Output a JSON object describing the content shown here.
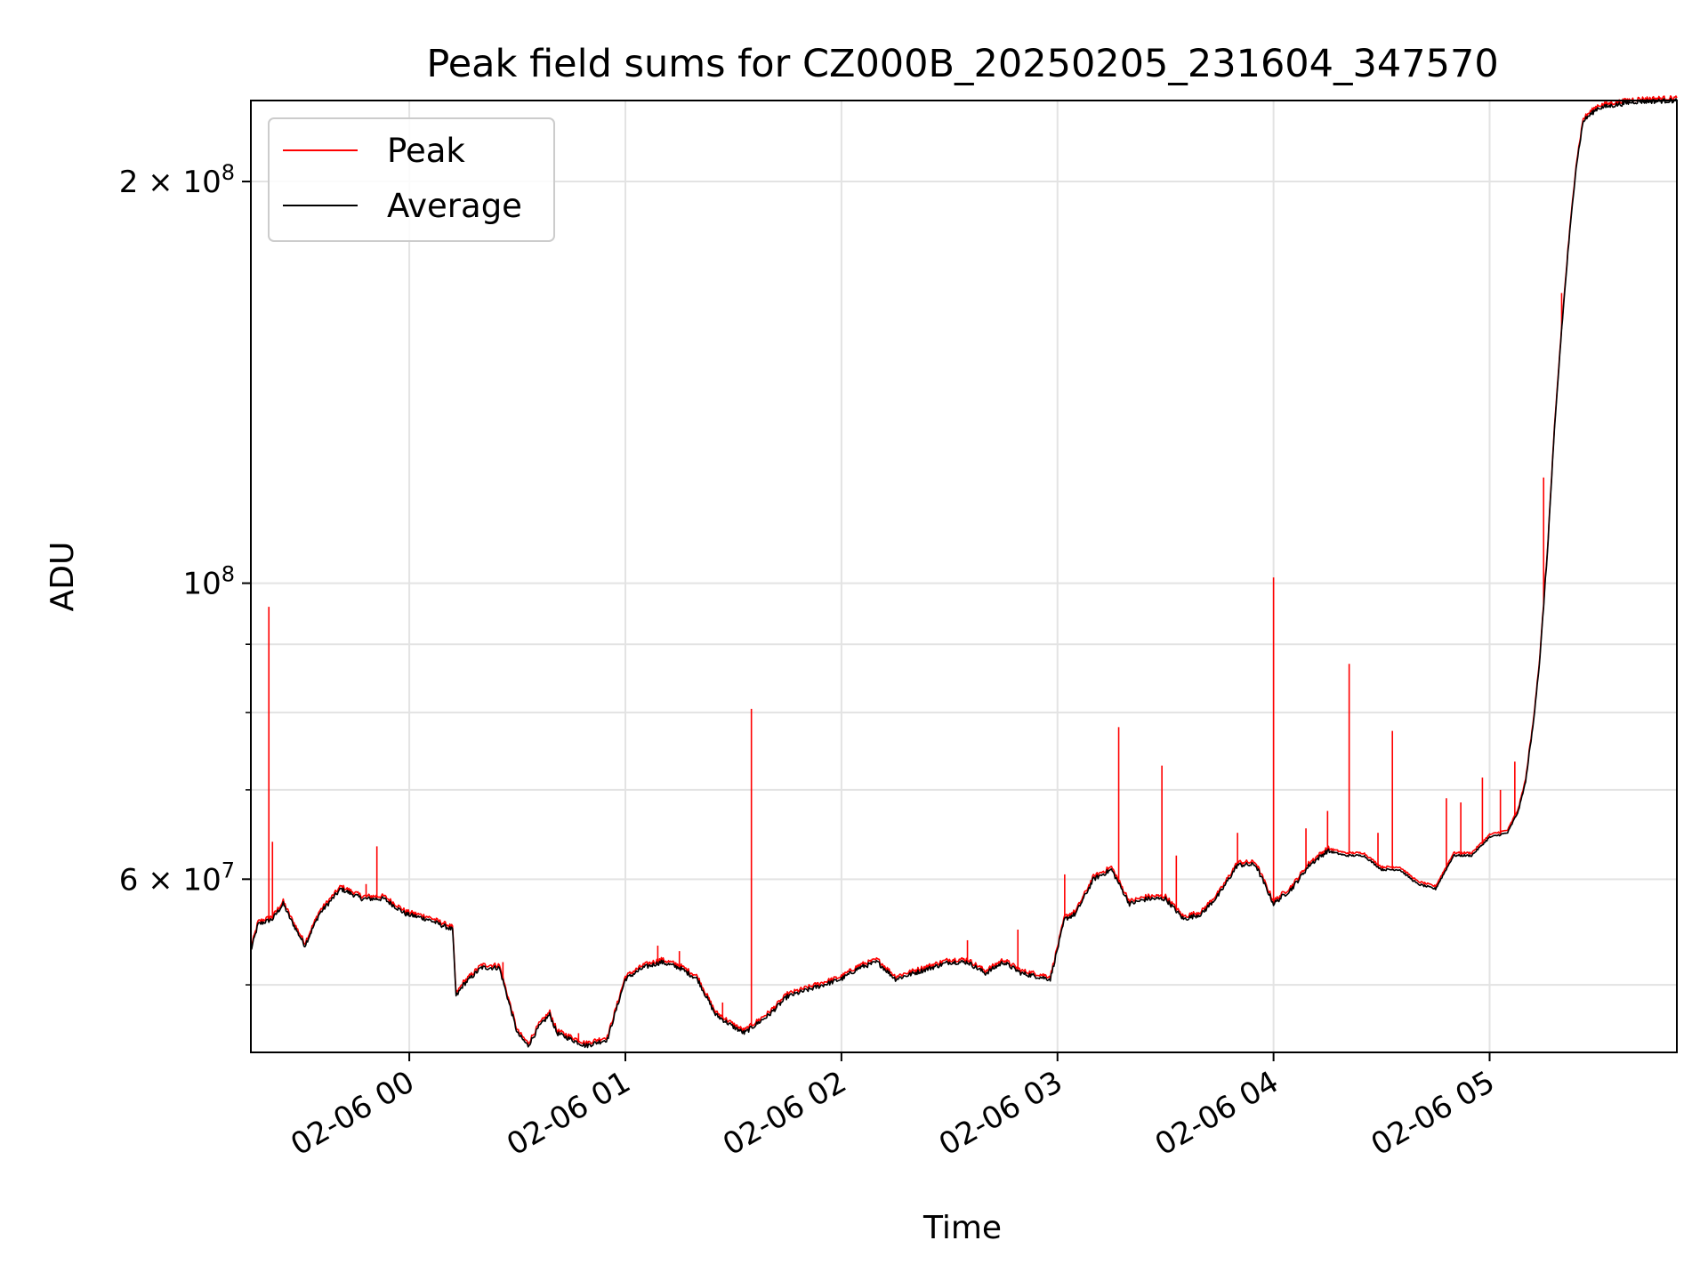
{
  "chart_data": {
    "type": "line",
    "title": "Peak field sums for CZ000B_20250205_231604_347570",
    "xlabel": "Time",
    "ylabel": "ADU",
    "y_scale": "log",
    "ylim": [
      44500000,
      230000000
    ],
    "xlim": [
      "02-05 23:16",
      "02-06 05:52"
    ],
    "grid": true,
    "legend_position": "upper-left",
    "x_ticks": [
      {
        "t": "02-06 00:00",
        "label": "02-06 00"
      },
      {
        "t": "02-06 01:00",
        "label": "02-06 01"
      },
      {
        "t": "02-06 02:00",
        "label": "02-06 02"
      },
      {
        "t": "02-06 03:00",
        "label": "02-06 03"
      },
      {
        "t": "02-06 04:00",
        "label": "02-06 04"
      },
      {
        "t": "02-06 05:00",
        "label": "02-06 05"
      }
    ],
    "y_ticks": [
      {
        "v": 60000000,
        "base": "6 × 10",
        "exp": "7"
      },
      {
        "v": 100000000,
        "base": "10",
        "exp": "8"
      },
      {
        "v": 200000000,
        "base": "2 × 10",
        "exp": "8"
      }
    ],
    "y_minor_ticks": [
      50000000,
      70000000,
      80000000,
      90000000
    ],
    "series": [
      {
        "name": "Average",
        "color": "#000000",
        "points": [
          [
            "02-05 23:16",
            53000000
          ],
          [
            "02-05 23:18",
            55500000
          ],
          [
            "02-05 23:22",
            56000000
          ],
          [
            "02-05 23:25",
            57500000
          ],
          [
            "02-05 23:27",
            56000000
          ],
          [
            "02-05 23:31",
            53500000
          ],
          [
            "02-05 23:35",
            56500000
          ],
          [
            "02-05 23:41",
            59000000
          ],
          [
            "02-05 23:47",
            58000000
          ],
          [
            "02-05 23:53",
            58000000
          ],
          [
            "02-05 23:59",
            56500000
          ],
          [
            "02-06 00:05",
            56000000
          ],
          [
            "02-06 00:12",
            55000000
          ],
          [
            "02-06 00:13",
            49000000
          ],
          [
            "02-06 00:15",
            50000000
          ],
          [
            "02-06 00:20",
            51500000
          ],
          [
            "02-06 00:25",
            51500000
          ],
          [
            "02-06 00:30",
            46000000
          ],
          [
            "02-06 00:33",
            45000000
          ],
          [
            "02-06 00:36",
            46500000
          ],
          [
            "02-06 00:39",
            47500000
          ],
          [
            "02-06 00:41",
            46000000
          ],
          [
            "02-06 00:45",
            45500000
          ],
          [
            "02-06 00:49",
            45000000
          ],
          [
            "02-06 00:55",
            45500000
          ],
          [
            "02-06 01:00",
            50500000
          ],
          [
            "02-06 01:05",
            51500000
          ],
          [
            "02-06 01:10",
            52000000
          ],
          [
            "02-06 01:15",
            51500000
          ],
          [
            "02-06 01:20",
            50500000
          ],
          [
            "02-06 01:25",
            47500000
          ],
          [
            "02-06 01:30",
            46500000
          ],
          [
            "02-06 01:33",
            46000000
          ],
          [
            "02-06 01:40",
            47500000
          ],
          [
            "02-06 01:45",
            49000000
          ],
          [
            "02-06 01:50",
            49500000
          ],
          [
            "02-06 01:55",
            50000000
          ],
          [
            "02-06 02:00",
            50500000
          ],
          [
            "02-06 02:05",
            51500000
          ],
          [
            "02-06 02:10",
            52000000
          ],
          [
            "02-06 02:15",
            50500000
          ],
          [
            "02-06 02:20",
            51000000
          ],
          [
            "02-06 02:25",
            51500000
          ],
          [
            "02-06 02:30",
            52000000
          ],
          [
            "02-06 02:35",
            52000000
          ],
          [
            "02-06 02:40",
            51000000
          ],
          [
            "02-06 02:45",
            52000000
          ],
          [
            "02-06 02:50",
            51000000
          ],
          [
            "02-06 02:58",
            50500000
          ],
          [
            "02-06 03:02",
            56000000
          ],
          [
            "02-06 03:05",
            56500000
          ],
          [
            "02-06 03:10",
            60000000
          ],
          [
            "02-06 03:15",
            61000000
          ],
          [
            "02-06 03:20",
            57500000
          ],
          [
            "02-06 03:25",
            58000000
          ],
          [
            "02-06 03:30",
            58000000
          ],
          [
            "02-06 03:35",
            56000000
          ],
          [
            "02-06 03:40",
            56500000
          ],
          [
            "02-06 03:45",
            58500000
          ],
          [
            "02-06 03:50",
            61500000
          ],
          [
            "02-06 03:55",
            61500000
          ],
          [
            "02-06 04:00",
            57500000
          ],
          [
            "02-06 04:05",
            59000000
          ],
          [
            "02-06 04:10",
            61500000
          ],
          [
            "02-06 04:15",
            63000000
          ],
          [
            "02-06 04:20",
            62500000
          ],
          [
            "02-06 04:25",
            62500000
          ],
          [
            "02-06 04:30",
            61000000
          ],
          [
            "02-06 04:35",
            61000000
          ],
          [
            "02-06 04:40",
            59500000
          ],
          [
            "02-06 04:45",
            59000000
          ],
          [
            "02-06 04:50",
            62500000
          ],
          [
            "02-06 04:55",
            62500000
          ],
          [
            "02-06 05:00",
            64500000
          ],
          [
            "02-06 05:05",
            65000000
          ],
          [
            "02-06 05:08",
            67500000
          ],
          [
            "02-06 05:10",
            71000000
          ],
          [
            "02-06 05:12",
            78000000
          ],
          [
            "02-06 05:14",
            88000000
          ],
          [
            "02-06 05:16",
            105000000
          ],
          [
            "02-06 05:18",
            130000000
          ],
          [
            "02-06 05:20",
            155000000
          ],
          [
            "02-06 05:22",
            180000000
          ],
          [
            "02-06 05:24",
            205000000
          ],
          [
            "02-06 05:26",
            222000000
          ],
          [
            "02-06 05:30",
            227000000
          ],
          [
            "02-06 05:40",
            229500000
          ],
          [
            "02-06 05:52",
            230000000
          ]
        ]
      },
      {
        "name": "Peak",
        "color": "#ff0000",
        "spikes": [
          [
            "02-05 23:21",
            96000000
          ],
          [
            "02-05 23:22",
            64000000
          ],
          [
            "02-05 23:48",
            59500000
          ],
          [
            "02-05 23:51",
            63500000
          ],
          [
            "02-06 00:26",
            52000000
          ],
          [
            "02-06 00:47",
            46000000
          ],
          [
            "02-06 01:09",
            53500000
          ],
          [
            "02-06 01:15",
            53000000
          ],
          [
            "02-06 01:27",
            48500000
          ],
          [
            "02-06 01:35",
            80500000
          ],
          [
            "02-06 02:35",
            54000000
          ],
          [
            "02-06 02:49",
            55000000
          ],
          [
            "02-06 03:02",
            60500000
          ],
          [
            "02-06 03:17",
            78000000
          ],
          [
            "02-06 03:29",
            73000000
          ],
          [
            "02-06 03:33",
            62500000
          ],
          [
            "02-06 03:50",
            65000000
          ],
          [
            "02-06 04:00",
            101000000
          ],
          [
            "02-06 04:09",
            65500000
          ],
          [
            "02-06 04:15",
            67500000
          ],
          [
            "02-06 04:21",
            87000000
          ],
          [
            "02-06 04:29",
            65000000
          ],
          [
            "02-06 04:33",
            77500000
          ],
          [
            "02-06 04:48",
            69000000
          ],
          [
            "02-06 04:52",
            68500000
          ],
          [
            "02-06 04:58",
            71500000
          ],
          [
            "02-06 05:03",
            70000000
          ],
          [
            "02-06 05:07",
            73500000
          ],
          [
            "02-06 05:15",
            120000000
          ],
          [
            "02-06 05:20",
            165000000
          ]
        ]
      }
    ]
  }
}
